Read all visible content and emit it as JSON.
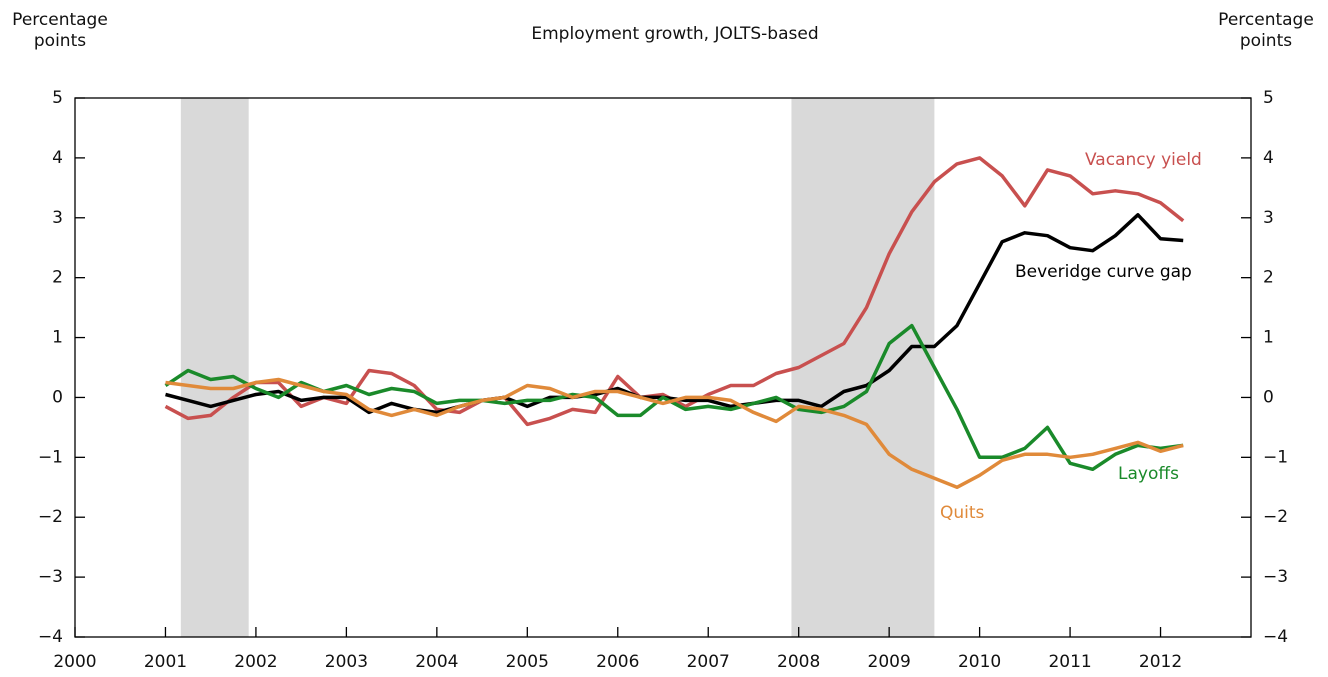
{
  "chart_data": {
    "type": "line",
    "title": "Employment growth, JOLTS-based",
    "ylabel": "Percentage points",
    "y2label": "Percentage points",
    "x": [
      2001,
      2001.25,
      2001.5,
      2001.75,
      2002,
      2002.25,
      2002.5,
      2002.75,
      2003,
      2003.25,
      2003.5,
      2003.75,
      2004,
      2004.25,
      2004.5,
      2004.75,
      2005,
      2005.25,
      2005.5,
      2005.75,
      2006,
      2006.25,
      2006.5,
      2006.75,
      2007,
      2007.25,
      2007.5,
      2007.75,
      2008,
      2008.25,
      2008.5,
      2008.75,
      2009,
      2009.25,
      2009.5,
      2009.75,
      2010,
      2010.25,
      2010.5,
      2010.75,
      2011,
      2011.25,
      2011.5,
      2011.75,
      2012,
      2012.25
    ],
    "series": [
      {
        "name": "Vacancy yield",
        "color": "#c8504f",
        "values": [
          -0.15,
          -0.35,
          -0.3,
          0.0,
          0.25,
          0.25,
          -0.15,
          0.0,
          -0.1,
          0.45,
          0.4,
          0.2,
          -0.2,
          -0.25,
          -0.05,
          0.0,
          -0.45,
          -0.35,
          -0.2,
          -0.25,
          0.35,
          0.0,
          0.05,
          -0.15,
          0.05,
          0.2,
          0.2,
          0.4,
          0.5,
          0.7,
          0.9,
          1.5,
          2.4,
          3.1,
          3.6,
          3.9,
          4.0,
          3.7,
          3.2,
          3.8,
          3.7,
          3.4,
          3.45,
          3.4,
          3.25,
          2.95
        ]
      },
      {
        "name": "Beveridge curve gap",
        "color": "#000000",
        "values": [
          0.05,
          -0.05,
          -0.15,
          -0.05,
          0.05,
          0.1,
          -0.05,
          0.0,
          0.0,
          -0.25,
          -0.1,
          -0.2,
          -0.25,
          -0.15,
          -0.05,
          0.0,
          -0.15,
          0.0,
          0.0,
          0.05,
          0.15,
          0.0,
          0.0,
          -0.05,
          -0.05,
          -0.15,
          -0.1,
          -0.05,
          -0.05,
          -0.15,
          0.1,
          0.2,
          0.45,
          0.85,
          0.85,
          1.2,
          1.9,
          2.6,
          2.75,
          2.7,
          2.5,
          2.45,
          2.7,
          3.05,
          2.65,
          2.62
        ]
      },
      {
        "name": "Layoffs",
        "color": "#1a8a2a",
        "values": [
          0.2,
          0.45,
          0.3,
          0.35,
          0.15,
          0.0,
          0.25,
          0.1,
          0.2,
          0.05,
          0.15,
          0.1,
          -0.1,
          -0.05,
          -0.05,
          -0.1,
          -0.05,
          -0.05,
          0.05,
          0.0,
          -0.3,
          -0.3,
          0.0,
          -0.2,
          -0.15,
          -0.2,
          -0.1,
          0.0,
          -0.2,
          -0.25,
          -0.15,
          0.1,
          0.9,
          1.2,
          0.5,
          -0.2,
          -1.0,
          -1.0,
          -0.85,
          -0.5,
          -1.1,
          -1.2,
          -0.95,
          -0.8,
          -0.85,
          -0.8
        ]
      },
      {
        "name": "Quits",
        "color": "#e08a3a",
        "values": [
          0.25,
          0.2,
          0.15,
          0.15,
          0.25,
          0.3,
          0.2,
          0.1,
          0.05,
          -0.2,
          -0.3,
          -0.2,
          -0.3,
          -0.15,
          -0.05,
          0.0,
          0.2,
          0.15,
          0.0,
          0.1,
          0.1,
          0.0,
          -0.1,
          0.0,
          0.0,
          -0.05,
          -0.25,
          -0.4,
          -0.15,
          -0.2,
          -0.3,
          -0.45,
          -0.95,
          -1.2,
          -1.35,
          -1.5,
          -1.3,
          -1.05,
          -0.95,
          -0.95,
          -1.0,
          -0.95,
          -0.85,
          -0.75,
          -0.9,
          -0.8
        ]
      }
    ],
    "recessions": [
      [
        2001.17,
        2001.92
      ],
      [
        2007.92,
        2009.5
      ]
    ],
    "recession_color": "#d9d9d9",
    "xlim": [
      2000,
      2013
    ],
    "xticks": [
      2000,
      2001,
      2002,
      2003,
      2004,
      2005,
      2006,
      2007,
      2008,
      2009,
      2010,
      2011,
      2012
    ],
    "ylim": [
      -4,
      5
    ],
    "yticks": [
      {
        "value": -4,
        "label": "−4"
      },
      {
        "value": -3,
        "label": "−3"
      },
      {
        "value": -2,
        "label": "−2"
      },
      {
        "value": -1,
        "label": "−1"
      },
      0,
      1,
      2,
      3,
      4,
      5
    ],
    "grid": false
  }
}
